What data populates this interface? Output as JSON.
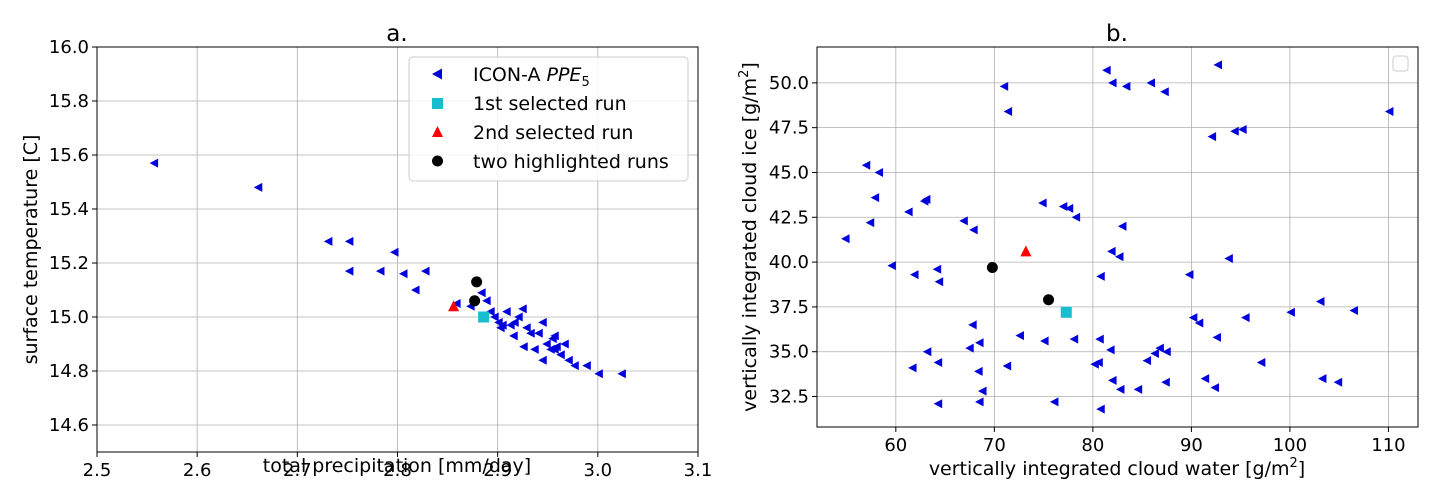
{
  "chart_data": [
    {
      "type": "scatter",
      "title": "a.",
      "xlabel": "total precipitation [mm/day]",
      "ylabel": "surface temperature [C]",
      "xlim": [
        2.5,
        3.1
      ],
      "ylim": [
        14.5,
        16.0
      ],
      "xticks": [
        "2.5",
        "2.6",
        "2.7",
        "2.8",
        "2.9",
        "3.0",
        "3.1"
      ],
      "yticks": [
        "14.6",
        "14.8",
        "15.0",
        "15.2",
        "15.4",
        "15.6",
        "15.8",
        "16.0"
      ],
      "grid": true,
      "legend_position": "top-right",
      "series": [
        {
          "name": "ICON-A PPE5",
          "name_base": "ICON-A ",
          "name_italic": "PPE",
          "name_sub": "5",
          "marker": "triangle-left",
          "color": "#0000dd",
          "points": [
            [
              2.557,
              15.57
            ],
            [
              2.661,
              15.48
            ],
            [
              2.731,
              15.28
            ],
            [
              2.752,
              15.28
            ],
            [
              2.752,
              15.17
            ],
            [
              2.783,
              15.17
            ],
            [
              2.797,
              15.24
            ],
            [
              2.806,
              15.16
            ],
            [
              2.818,
              15.1
            ],
            [
              2.828,
              15.17
            ],
            [
              2.859,
              15.05
            ],
            [
              2.873,
              15.04
            ],
            [
              2.884,
              15.09
            ],
            [
              2.889,
              15.06
            ],
            [
              2.893,
              15.02
            ],
            [
              2.897,
              15.0
            ],
            [
              2.901,
              14.98
            ],
            [
              2.905,
              14.97
            ],
            [
              2.909,
              15.02
            ],
            [
              2.913,
              14.97
            ],
            [
              2.917,
              14.98
            ],
            [
              2.921,
              15.0
            ],
            [
              2.925,
              15.03
            ],
            [
              2.929,
              14.96
            ],
            [
              2.933,
              14.94
            ],
            [
              2.937,
              14.88
            ],
            [
              2.941,
              14.94
            ],
            [
              2.945,
              14.98
            ],
            [
              2.949,
              14.9
            ],
            [
              2.953,
              14.88
            ],
            [
              2.955,
              14.92
            ],
            [
              2.957,
              14.93
            ],
            [
              2.959,
              14.89
            ],
            [
              2.963,
              14.86
            ],
            [
              2.967,
              14.9
            ],
            [
              2.971,
              14.84
            ],
            [
              2.977,
              14.82
            ],
            [
              2.989,
              14.82
            ],
            [
              3.001,
              14.79
            ],
            [
              3.024,
              14.79
            ],
            [
              2.916,
              14.93
            ],
            [
              2.926,
              14.89
            ],
            [
              2.903,
              14.96
            ],
            [
              2.957,
              14.88
            ],
            [
              2.945,
              14.84
            ]
          ]
        },
        {
          "name": "1st selected run",
          "marker": "square",
          "color": "#17becf",
          "points": [
            [
              2.886,
              15.0
            ]
          ]
        },
        {
          "name": "2nd selected run",
          "marker": "triangle-up",
          "color": "#ff0000",
          "points": [
            [
              2.856,
              15.04
            ]
          ]
        },
        {
          "name": "two highlighted runs",
          "marker": "circle",
          "color": "#000000",
          "points": [
            [
              2.879,
              15.13
            ],
            [
              2.877,
              15.06
            ]
          ]
        }
      ]
    },
    {
      "type": "scatter",
      "title": "b.",
      "xlabel": "vertically integrated cloud water [g/m2]",
      "xlabel_base": "vertically integrated cloud water [g/m",
      "xlabel_sup": "2",
      "xlabel_end": "]",
      "ylabel": "vertically integrated cloud ice [g/m2]",
      "ylabel_base": "vertically integrated cloud ice [g/m",
      "ylabel_sup": "2",
      "ylabel_end": "]",
      "xlim": [
        52,
        113
      ],
      "ylim": [
        30.8,
        52.0
      ],
      "xticks": [
        "60",
        "70",
        "80",
        "90",
        "100",
        "110"
      ],
      "yticks": [
        "32.5",
        "35.0",
        "37.5",
        "40.0",
        "42.5",
        "45.0",
        "47.5",
        "50.0"
      ],
      "grid": true,
      "legend_position": "top-right",
      "series": [
        {
          "name": "ICON-A PPE5",
          "marker": "triangle-left",
          "color": "#0000dd",
          "points": [
            [
              54.9,
              41.3
            ],
            [
              57.0,
              45.4
            ],
            [
              58.3,
              45.0
            ],
            [
              57.9,
              43.6
            ],
            [
              57.4,
              42.2
            ],
            [
              59.6,
              39.8
            ],
            [
              61.3,
              42.8
            ],
            [
              62.9,
              43.4
            ],
            [
              63.1,
              43.5
            ],
            [
              61.9,
              39.3
            ],
            [
              64.2,
              39.6
            ],
            [
              64.4,
              38.9
            ],
            [
              61.7,
              34.1
            ],
            [
              63.2,
              35.0
            ],
            [
              64.3,
              34.4
            ],
            [
              64.3,
              32.1
            ],
            [
              66.9,
              42.3
            ],
            [
              67.9,
              41.8
            ],
            [
              67.8,
              36.5
            ],
            [
              67.5,
              35.2
            ],
            [
              68.5,
              35.5
            ],
            [
              68.4,
              33.9
            ],
            [
              68.8,
              32.8
            ],
            [
              68.5,
              32.2
            ],
            [
              71.0,
              49.8
            ],
            [
              71.4,
              48.4
            ],
            [
              71.3,
              34.2
            ],
            [
              72.6,
              35.9
            ],
            [
              74.9,
              43.3
            ],
            [
              75.1,
              35.6
            ],
            [
              76.1,
              32.2
            ],
            [
              77.0,
              43.1
            ],
            [
              77.6,
              43.0
            ],
            [
              78.3,
              42.5
            ],
            [
              78.1,
              35.7
            ],
            [
              80.8,
              39.2
            ],
            [
              80.6,
              34.4
            ],
            [
              80.2,
              34.3
            ],
            [
              80.7,
              35.7
            ],
            [
              80.8,
              31.8
            ],
            [
              81.4,
              50.7
            ],
            [
              82.0,
              50.0
            ],
            [
              83.4,
              49.8
            ],
            [
              81.9,
              40.6
            ],
            [
              82.7,
              40.3
            ],
            [
              83.0,
              42.0
            ],
            [
              81.8,
              35.1
            ],
            [
              82.0,
              33.4
            ],
            [
              82.8,
              32.9
            ],
            [
              84.6,
              32.9
            ],
            [
              85.5,
              34.5
            ],
            [
              86.3,
              34.9
            ],
            [
              86.8,
              35.2
            ],
            [
              87.5,
              35.0
            ],
            [
              87.4,
              33.3
            ],
            [
              85.9,
              50.0
            ],
            [
              87.3,
              49.5
            ],
            [
              89.8,
              39.3
            ],
            [
              90.2,
              36.9
            ],
            [
              90.8,
              36.6
            ],
            [
              91.4,
              33.5
            ],
            [
              92.4,
              33.0
            ],
            [
              92.6,
              35.8
            ],
            [
              92.7,
              51.0
            ],
            [
              92.1,
              47.0
            ],
            [
              93.8,
              40.2
            ],
            [
              94.4,
              47.3
            ],
            [
              95.2,
              47.4
            ],
            [
              95.5,
              36.9
            ],
            [
              97.1,
              34.4
            ],
            [
              100.1,
              37.2
            ],
            [
              103.1,
              37.8
            ],
            [
              103.3,
              33.5
            ],
            [
              104.9,
              33.3
            ],
            [
              106.5,
              37.3
            ],
            [
              110.1,
              48.4
            ]
          ]
        },
        {
          "name": "1st selected run",
          "marker": "square",
          "color": "#17becf",
          "points": [
            [
              77.3,
              37.2
            ]
          ]
        },
        {
          "name": "2nd selected run",
          "marker": "triangle-up",
          "color": "#ff0000",
          "points": [
            [
              73.2,
              40.6
            ]
          ]
        },
        {
          "name": "two highlighted runs",
          "marker": "circle",
          "color": "#000000",
          "points": [
            [
              69.8,
              39.7
            ],
            [
              75.5,
              37.9
            ]
          ]
        }
      ]
    }
  ]
}
